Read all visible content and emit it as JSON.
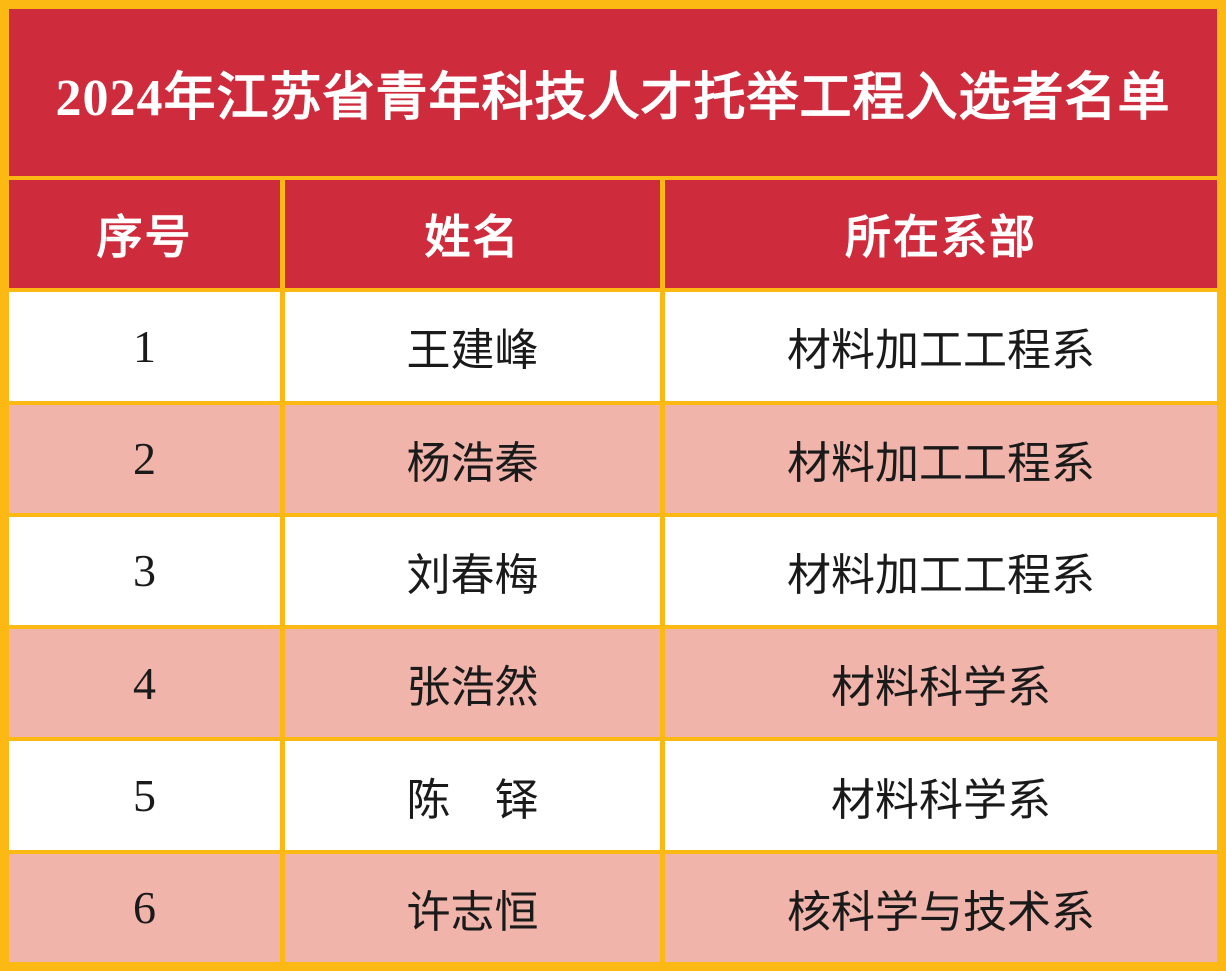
{
  "title": "2024年江苏省青年科技人才托举工程入选者名单",
  "table": {
    "headers": [
      "序号",
      "姓名",
      "所在系部"
    ],
    "rows": [
      {
        "index": "1",
        "name": "王建峰",
        "department": "材料加工工程系"
      },
      {
        "index": "2",
        "name": "杨浩秦",
        "department": "材料加工工程系"
      },
      {
        "index": "3",
        "name": "刘春梅",
        "department": "材料加工工程系"
      },
      {
        "index": "4",
        "name": "张浩然",
        "department": "材料科学系"
      },
      {
        "index": "5",
        "name": "陈　铎",
        "department": "材料科学系"
      },
      {
        "index": "6",
        "name": "许志恒",
        "department": "核科学与技术系"
      }
    ]
  },
  "colors": {
    "border": "#FDB913",
    "header_bg": "#CE2B3C",
    "header_text": "#FFFFFF",
    "row_bg": "#FFFFFF",
    "row_alt_bg": "#F0B4AB",
    "body_text": "#1A1A1A"
  }
}
